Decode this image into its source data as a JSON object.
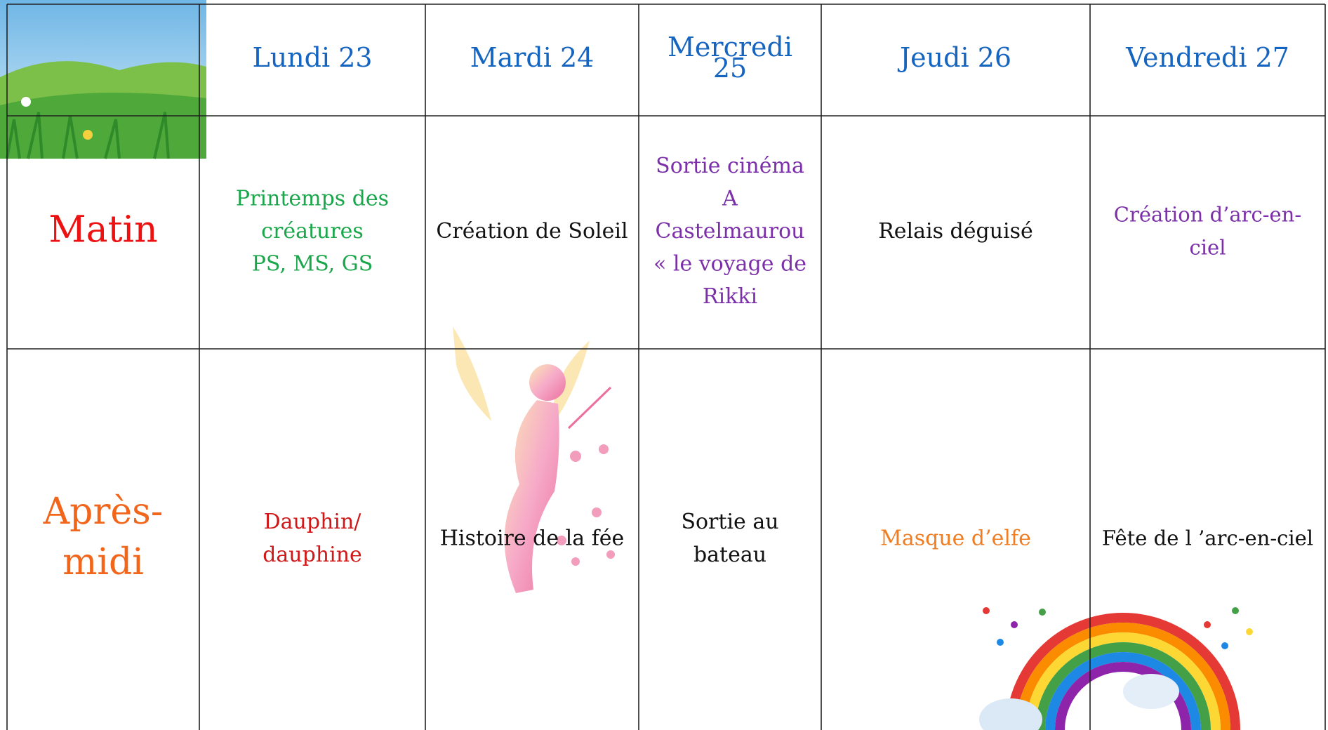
{
  "table": {
    "header": [
      [
        "Lundi 23"
      ],
      [
        "Mardi 24"
      ],
      [
        "Mercredi",
        "25"
      ],
      [
        "Jeudi 26"
      ],
      [
        "Vendredi 27"
      ]
    ],
    "header_color": "#1565c0",
    "rows": [
      {
        "label": [
          "Matin"
        ],
        "label_color": "#ee1111",
        "cells": [
          {
            "lines": [
              "Printemps des",
              "créatures",
              "PS, MS, GS"
            ],
            "color": "#1aa64a"
          },
          {
            "lines": [
              "Création de Soleil"
            ],
            "color": "#111111"
          },
          {
            "lines": [
              "Sortie cinéma",
              "A",
              "Castelmaurou",
              "« le voyage de",
              "Rikki"
            ],
            "color": "#7b2fa8"
          },
          {
            "lines": [
              "Relais déguisé"
            ],
            "color": "#111111"
          },
          {
            "lines": [
              "Création d’arc-en-",
              "ciel"
            ],
            "color": "#7b2fa8"
          }
        ]
      },
      {
        "label": [
          "Après-",
          "midi"
        ],
        "label_color": "#f2661c",
        "cells": [
          {
            "lines": [
              "Dauphin/",
              "dauphine"
            ],
            "color": "#d01818"
          },
          {
            "lines": [
              "Histoire de la fée"
            ],
            "color": "#111111"
          },
          {
            "lines": [
              "Sortie au",
              "bateau"
            ],
            "color": "#111111"
          },
          {
            "lines": [
              "Masque d’elfe"
            ],
            "color": "#f07d22"
          },
          {
            "lines": [
              "Fête de l ’arc-en-ciel"
            ],
            "color": "#111111"
          }
        ]
      }
    ]
  }
}
